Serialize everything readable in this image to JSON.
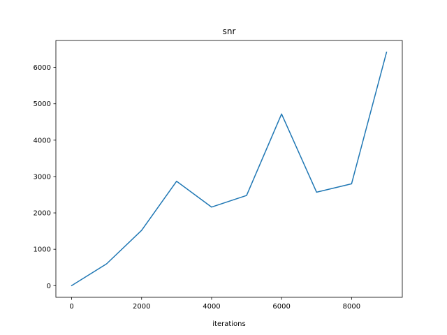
{
  "chart_data": {
    "type": "line",
    "title": "snr",
    "xlabel": "iterations",
    "ylabel": "",
    "xlim": [
      -450,
      9450
    ],
    "ylim": [
      -321,
      6741
    ],
    "xticks": [
      0,
      2000,
      4000,
      6000,
      8000
    ],
    "yticks": [
      0,
      1000,
      2000,
      3000,
      4000,
      5000,
      6000
    ],
    "grid": false,
    "legend": "none",
    "series": [
      {
        "color": "#1f77b4",
        "x": [
          0,
          1000,
          2000,
          3000,
          4000,
          5000,
          6000,
          7000,
          8000,
          9000
        ],
        "y": [
          0,
          600,
          1520,
          2870,
          2160,
          2480,
          4720,
          2570,
          2800,
          6420
        ]
      }
    ]
  }
}
